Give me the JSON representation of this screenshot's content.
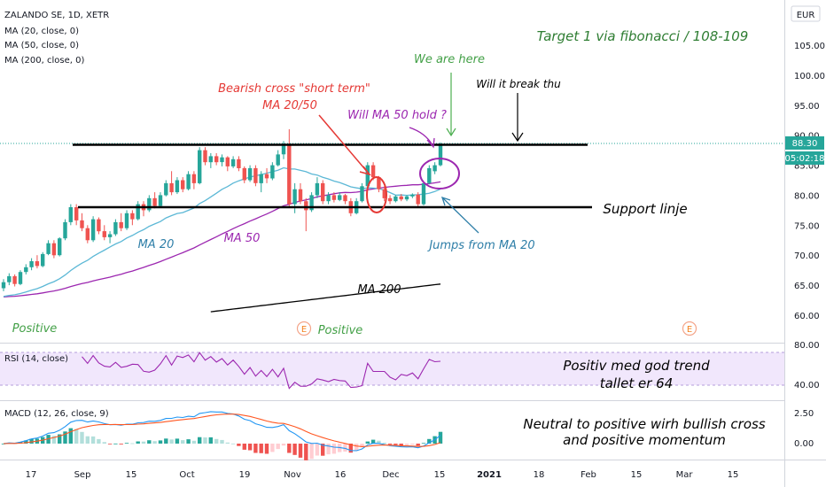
{
  "chart_data": {
    "type": "candlestick",
    "symbol_line": "ZALANDO SE, 1D, XETR",
    "indicators": [
      "MA (20, close, 0)",
      "MA (50, close, 0)",
      "MA (200, close, 0)"
    ],
    "currency": "EUR",
    "price_axis_ticks": [
      "105.00",
      "100.00",
      "95.00",
      "90.00",
      "85.00",
      "80.00",
      "75.00",
      "70.00",
      "65.00",
      "60.00"
    ],
    "last_price": "88.30",
    "countdown": "05:02:18",
    "x_ticks": [
      "17",
      "Sep",
      "15",
      "Oct",
      "19",
      "Nov",
      "16",
      "Dec",
      "15",
      "2021",
      "18",
      "Feb",
      "15",
      "Mar",
      "15"
    ],
    "candles": [
      [
        64.5,
        66.0,
        64.0,
        65.5
      ],
      [
        65.5,
        67.0,
        65.0,
        66.5
      ],
      [
        66.5,
        66.8,
        64.8,
        65.2
      ],
      [
        65.2,
        67.5,
        65.0,
        67.2
      ],
      [
        67.2,
        68.5,
        66.8,
        68.0
      ],
      [
        68.0,
        69.5,
        67.5,
        69.0
      ],
      [
        69.0,
        70.0,
        67.8,
        68.2
      ],
      [
        68.2,
        70.5,
        68.0,
        70.2
      ],
      [
        70.2,
        72.5,
        70.0,
        72.0
      ],
      [
        72.0,
        72.5,
        69.5,
        70.0
      ],
      [
        70.0,
        73.0,
        69.8,
        72.8
      ],
      [
        72.8,
        76.0,
        72.5,
        75.5
      ],
      [
        75.5,
        78.5,
        75.0,
        78.0
      ],
      [
        78.0,
        78.5,
        75.0,
        75.8
      ],
      [
        75.8,
        77.0,
        74.0,
        74.5
      ],
      [
        74.5,
        75.0,
        72.0,
        72.5
      ],
      [
        72.5,
        76.5,
        72.2,
        76.0
      ],
      [
        76.0,
        76.3,
        73.5,
        74.0
      ],
      [
        74.0,
        75.0,
        72.5,
        73.0
      ],
      [
        73.0,
        74.0,
        72.0,
        73.5
      ],
      [
        73.5,
        76.0,
        73.2,
        75.5
      ],
      [
        75.5,
        77.0,
        74.0,
        74.5
      ],
      [
        74.5,
        77.5,
        74.2,
        77.0
      ],
      [
        77.0,
        77.5,
        75.0,
        76.0
      ],
      [
        76.0,
        79.0,
        75.8,
        78.5
      ],
      [
        78.5,
        79.0,
        76.5,
        77.5
      ],
      [
        77.5,
        80.0,
        77.2,
        79.5
      ],
      [
        79.5,
        80.5,
        77.8,
        78.2
      ],
      [
        78.2,
        80.5,
        78.0,
        80.0
      ],
      [
        80.0,
        82.5,
        79.8,
        82.0
      ],
      [
        82.0,
        84.0,
        80.0,
        80.5
      ],
      [
        80.5,
        83.0,
        80.2,
        82.5
      ],
      [
        82.5,
        83.0,
        80.5,
        81.0
      ],
      [
        81.0,
        84.0,
        80.8,
        83.5
      ],
      [
        83.5,
        84.0,
        81.0,
        82.0
      ],
      [
        82.0,
        88.0,
        81.8,
        87.5
      ],
      [
        87.5,
        88.0,
        85.0,
        85.5
      ],
      [
        85.5,
        87.0,
        84.5,
        86.5
      ],
      [
        86.5,
        87.0,
        85.0,
        85.5
      ],
      [
        85.5,
        86.8,
        84.8,
        86.3
      ],
      [
        86.3,
        86.5,
        84.0,
        84.8
      ],
      [
        84.8,
        86.5,
        84.5,
        86.0
      ],
      [
        86.0,
        86.5,
        84.0,
        84.5
      ],
      [
        84.5,
        84.8,
        82.0,
        82.5
      ],
      [
        82.5,
        85.0,
        82.2,
        84.5
      ],
      [
        84.5,
        85.0,
        81.5,
        82.0
      ],
      [
        82.0,
        84.0,
        80.5,
        83.5
      ],
      [
        83.5,
        84.5,
        82.0,
        82.8
      ],
      [
        82.8,
        85.5,
        82.5,
        85.0
      ],
      [
        85.0,
        87.5,
        84.8,
        86.8
      ],
      [
        86.8,
        89.0,
        86.0,
        88.5
      ],
      [
        88.5,
        91.0,
        78.0,
        78.5
      ],
      [
        78.5,
        82.0,
        77.0,
        81.0
      ],
      [
        81.0,
        82.0,
        78.5,
        79.0
      ],
      [
        79.0,
        79.5,
        74.0,
        77.5
      ],
      [
        77.5,
        80.5,
        77.2,
        80.0
      ],
      [
        80.0,
        83.0,
        79.5,
        82.0
      ],
      [
        82.0,
        82.5,
        78.5,
        79.0
      ],
      [
        79.0,
        80.5,
        78.5,
        80.0
      ],
      [
        80.0,
        80.5,
        78.8,
        79.2
      ],
      [
        79.2,
        80.5,
        79.0,
        80.0
      ],
      [
        80.0,
        80.2,
        78.5,
        79.0
      ],
      [
        79.0,
        79.5,
        76.5,
        77.0
      ],
      [
        77.0,
        79.5,
        76.8,
        79.0
      ],
      [
        79.0,
        82.0,
        78.8,
        81.5
      ],
      [
        81.5,
        85.5,
        81.2,
        85.0
      ],
      [
        85.0,
        85.5,
        82.5,
        83.0
      ],
      [
        83.0,
        83.2,
        80.5,
        81.0
      ],
      [
        81.0,
        81.5,
        79.0,
        79.5
      ],
      [
        79.5,
        80.0,
        78.5,
        79.0
      ],
      [
        79.0,
        80.0,
        78.8,
        79.8
      ],
      [
        79.8,
        80.2,
        79.0,
        79.3
      ],
      [
        79.3,
        80.0,
        79.0,
        79.8
      ],
      [
        79.8,
        80.3,
        79.5,
        80.1
      ],
      [
        80.1,
        80.5,
        78.0,
        78.5
      ],
      [
        78.5,
        82.0,
        78.3,
        82.0
      ],
      [
        82.0,
        85.0,
        81.8,
        84.5
      ],
      [
        84.0,
        85.5,
        83.5,
        85.0
      ],
      [
        85.0,
        88.8,
        84.8,
        88.3
      ]
    ],
    "rsi": {
      "label": "RSI (14, close)",
      "ticks": [
        "40.00"
      ],
      "current": 64
    },
    "macd": {
      "label": "MACD (12, 26, close, 9)",
      "ticks": [
        "2.50",
        "0.00"
      ]
    },
    "annotations": {
      "target": "Target 1 via fibonacci / 108-109",
      "we_are_here": "We are here",
      "will_break": "Will it break thu",
      "bearish_line1": "Bearish cross \"short term\"",
      "bearish_line2": "MA 20/50",
      "ma50_hold": "Will MA 50 hold ?",
      "support": "Support linje",
      "jumps": "Jumps from MA 20",
      "ma20": "MA 20",
      "ma50": "MA 50",
      "ma200": "MA 200",
      "positive_left": "Positive",
      "positive_mid": "Positive",
      "rsi_line1": "Positiv med god trend",
      "rsi_line2": "tallet er 64",
      "macd_line1": "Neutral to positive wirh bullish cross",
      "macd_line2": "and positive momentum",
      "earnings_glyph": "E"
    },
    "colors": {
      "up": "#26a69a",
      "down": "#ef5350",
      "ma20": "#5cb8d6",
      "ma50": "#9c27b0",
      "ma200": "#000000",
      "rsi": "#9c27b0",
      "macd": "#2196f3",
      "signal": "#ff5722",
      "annotation_green": "#2e7d32",
      "annotation_red": "#e53935",
      "annotation_purple": "#9c27b0",
      "annotation_blue": "#2f7fa8"
    }
  }
}
